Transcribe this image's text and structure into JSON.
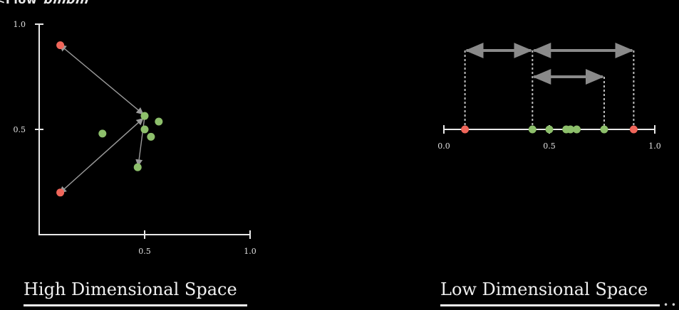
{
  "watermark": {
    "text": "<Flow",
    "logo": "Bilibili"
  },
  "colors": {
    "background": "#000000",
    "axis": "#e8e8e8",
    "cluster_point": "#8dbf6b",
    "outlier_point": "#f0665a",
    "arrow": "#9a9a9a",
    "dotted_line": "#bdbdbd"
  },
  "chart_data": [
    {
      "type": "scatter",
      "title": "High Dimensional Space",
      "xlim": [
        0,
        1.0
      ],
      "ylim": [
        0,
        1.0
      ],
      "x_ticks": [
        {
          "value": 0.5,
          "label": "0.5"
        },
        {
          "value": 1.0,
          "label": "1.0"
        }
      ],
      "y_ticks": [
        {
          "value": 0.5,
          "label": "0.5"
        },
        {
          "value": 1.0,
          "label": "1.0"
        }
      ],
      "series": [
        {
          "class": "cluster",
          "points": [
            {
              "x": 0.5,
              "y": 0.564
            },
            {
              "x": 0.567,
              "y": 0.537
            },
            {
              "x": 0.5,
              "y": 0.5
            },
            {
              "x": 0.3,
              "y": 0.48
            },
            {
              "x": 0.53,
              "y": 0.465
            },
            {
              "x": 0.467,
              "y": 0.32
            }
          ]
        },
        {
          "class": "outlier",
          "points": [
            {
              "x": 0.1,
              "y": 0.9
            },
            {
              "x": 0.1,
              "y": 0.2
            }
          ]
        }
      ],
      "arrows": [
        {
          "from": [
            0.1,
            0.9
          ],
          "to": [
            0.49,
            0.575
          ],
          "double": true
        },
        {
          "from": [
            0.1,
            0.2
          ],
          "to": [
            0.49,
            0.55
          ],
          "double": true
        },
        {
          "from": [
            0.5,
            0.56
          ],
          "to": [
            0.47,
            0.33
          ],
          "double": false
        }
      ]
    },
    {
      "type": "scatter",
      "title": "Low Dimensional Space",
      "xlim": [
        0,
        1.0
      ],
      "x_ticks": [
        {
          "value": 0.0,
          "label": "0.0"
        },
        {
          "value": 0.5,
          "label": "0.5"
        },
        {
          "value": 1.0,
          "label": "1.0"
        }
      ],
      "series": [
        {
          "class": "cluster",
          "points": [
            {
              "x": 0.42
            },
            {
              "x": 0.5
            },
            {
              "x": 0.58
            },
            {
              "x": 0.6
            },
            {
              "x": 0.63
            },
            {
              "x": 0.76
            }
          ]
        },
        {
          "class": "outlier",
          "points": [
            {
              "x": 0.1
            },
            {
              "x": 0.9
            }
          ]
        }
      ],
      "distance_arrows": [
        {
          "from": 0.1,
          "to": 0.42,
          "level": 1
        },
        {
          "from": 0.42,
          "to": 0.9,
          "level": 1
        },
        {
          "from": 0.42,
          "to": 0.76,
          "level": 2
        }
      ]
    }
  ]
}
